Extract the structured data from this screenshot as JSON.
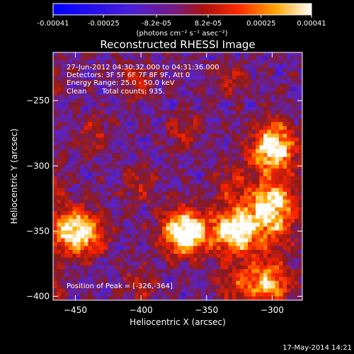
{
  "colorbar": {
    "tick_labels": [
      "-0.00041",
      "-0.00025",
      "-8.2e-05",
      "8.2e-05",
      "0.00025",
      "0.00041"
    ],
    "tick_values": [
      -0.00041,
      -0.00025,
      -8.2e-05,
      8.2e-05,
      0.00025,
      0.00041
    ],
    "range": [
      -0.00041,
      0.00041
    ],
    "unit_label": "(photons cm⁻² s⁻¹ asec⁻²)"
  },
  "chart_data": {
    "type": "heatmap",
    "title": "Reconstructed RHESSI Image",
    "xlabel": "Heliocentric X (arcsec)",
    "ylabel": "Heliocentric Y (arcsec)",
    "xlim": [
      -467,
      -277
    ],
    "ylim": [
      -403,
      -213
    ],
    "xticks": [
      -450,
      -400,
      -350,
      -300
    ],
    "yticks": [
      -250,
      -300,
      -350,
      -400
    ],
    "colormap": "RHESSI blue-purple-red-yellow",
    "color_stops": [
      "#0000ff",
      "#5a23c8",
      "#8b1a1a",
      "#ff2200",
      "#ffb000",
      "#ffffff"
    ],
    "grid": false,
    "peak": {
      "x": -326,
      "y": -364
    },
    "bright_regions": [
      {
        "x": -327,
        "y": -350,
        "level": 0.95
      },
      {
        "x": -366,
        "y": -350,
        "level": 0.8
      },
      {
        "x": -452,
        "y": -350,
        "level": 0.85
      },
      {
        "x": -300,
        "y": -330,
        "level": 0.85
      },
      {
        "x": -300,
        "y": -290,
        "level": 0.8
      },
      {
        "x": -305,
        "y": -390,
        "level": 0.7
      }
    ],
    "annotations": {
      "time_range": "27-Jun-2012 04:30:32.000 to 04:31:36.000",
      "detectors": "Detectors: 3F 5F 6F 7F 8F 9F, Att 0",
      "energy_range": "Energy Range: 25.0 - 50.0 keV",
      "method": "Clean",
      "total_counts": "Total counts: 935.",
      "peak_label": "Position of Peak = [-326,-364]"
    }
  },
  "footer": {
    "timestamp": "17-May-2014 14:21"
  }
}
